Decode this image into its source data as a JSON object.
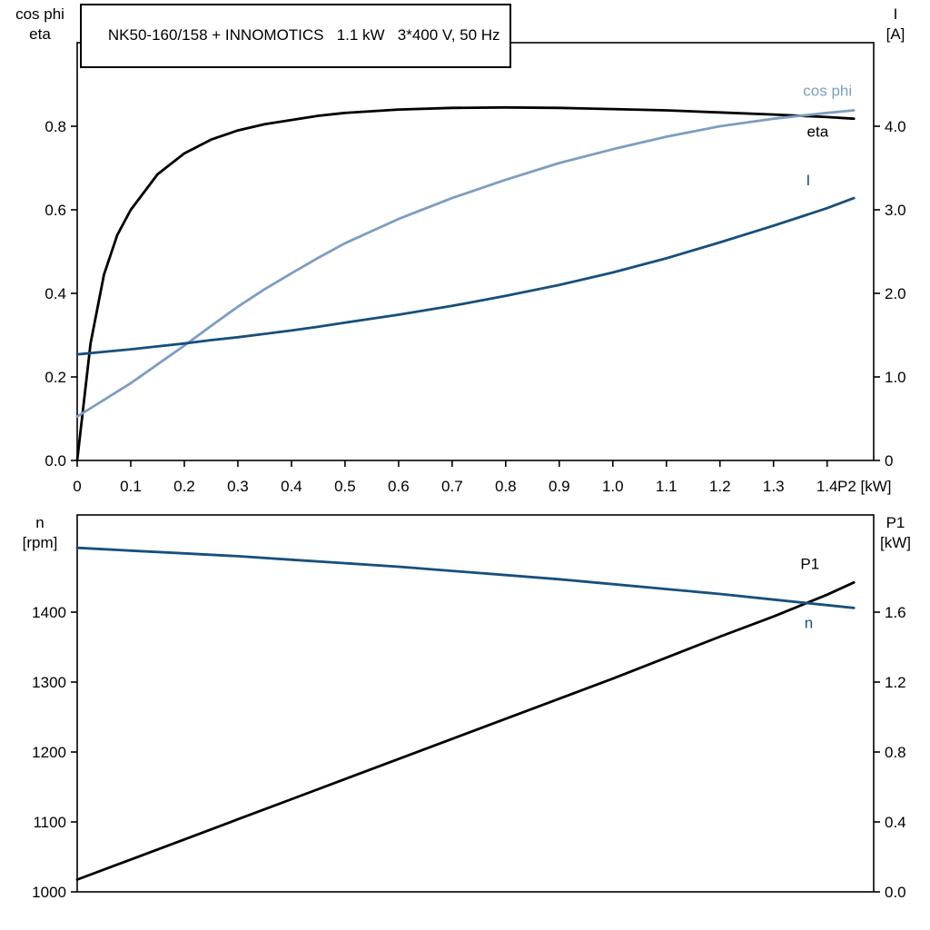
{
  "colors": {
    "eta": "#000000",
    "cos_phi": "#7e9dc1",
    "current": "#174f7c",
    "speed": "#174f7c",
    "p1": "#000000",
    "frame": "#000000"
  },
  "chart_data": [
    {
      "type": "line",
      "title": "NK50-160/158 + INNOMOTICS   1.1 kW   3*400 V, 50 Hz",
      "grid": false,
      "legend": "end-of-line-labels",
      "x_axis": {
        "label": "P2 [kW]",
        "range": [
          0,
          1.487
        ],
        "tick_values": [
          0,
          0.1,
          0.2,
          0.3,
          0.4,
          0.5,
          0.6,
          0.7,
          0.8,
          0.9,
          1.0,
          1.1,
          1.2,
          1.3,
          1.4
        ],
        "tick_labels": [
          "0",
          "0.1",
          "0.2",
          "0.3",
          "0.4",
          "0.5",
          "0.6",
          "0.7",
          "0.8",
          "0.9",
          "1.0",
          "1.1",
          "1.2",
          "1.3",
          "1.4"
        ]
      },
      "left_axis": {
        "title_lines": [
          "cos phi",
          "eta"
        ],
        "range": [
          0,
          1.0
        ],
        "tick_values": [
          0,
          0.2,
          0.4,
          0.6,
          0.8
        ],
        "tick_labels": [
          "0.0",
          "0.2",
          "0.4",
          "0.6",
          "0.8"
        ]
      },
      "right_axis": {
        "title_lines": [
          "I",
          "[A]"
        ],
        "range": [
          0,
          5.0
        ],
        "tick_values": [
          0,
          1,
          2,
          3,
          4
        ],
        "tick_labels": [
          "0",
          "1.0",
          "2.0",
          "3.0",
          "4.0"
        ]
      },
      "x": [
        0,
        0.025,
        0.05,
        0.075,
        0.1,
        0.15,
        0.2,
        0.25,
        0.3,
        0.35,
        0.4,
        0.45,
        0.5,
        0.6,
        0.7,
        0.8,
        0.9,
        1.0,
        1.1,
        1.2,
        1.3,
        1.4,
        1.45
      ],
      "series": [
        {
          "name": "eta",
          "label": "eta",
          "axis": "left",
          "color": "#000000",
          "label_offset": [
            -28,
            20
          ],
          "values": [
            0,
            0.28,
            0.445,
            0.54,
            0.6,
            0.685,
            0.735,
            0.768,
            0.79,
            0.805,
            0.815,
            0.825,
            0.832,
            0.84,
            0.844,
            0.845,
            0.844,
            0.841,
            0.838,
            0.833,
            0.828,
            0.822,
            0.818
          ]
        },
        {
          "name": "cos phi",
          "label": "cos phi",
          "axis": "left",
          "color": "#7e9dc1",
          "label_offset": [
            -2,
            -16
          ],
          "values": [
            0.105,
            0.125,
            0.145,
            0.165,
            0.185,
            0.23,
            0.275,
            0.322,
            0.368,
            0.41,
            0.448,
            0.485,
            0.52,
            0.578,
            0.628,
            0.672,
            0.712,
            0.745,
            0.775,
            0.8,
            0.818,
            0.832,
            0.838
          ]
        },
        {
          "name": "I",
          "label": "I",
          "axis": "right",
          "color": "#174f7c",
          "label_offset": [
            -48,
            -14
          ],
          "values": [
            1.27,
            1.285,
            1.3,
            1.315,
            1.33,
            1.365,
            1.4,
            1.44,
            1.475,
            1.515,
            1.555,
            1.6,
            1.65,
            1.745,
            1.85,
            1.97,
            2.1,
            2.25,
            2.42,
            2.61,
            2.81,
            3.02,
            3.14
          ]
        }
      ]
    },
    {
      "type": "line",
      "title": "",
      "grid": false,
      "legend": "end-of-line-labels",
      "x_axis": {
        "label": "",
        "range": [
          0,
          1.487
        ],
        "tick_values": [],
        "tick_labels": []
      },
      "left_axis": {
        "title_lines": [
          "n",
          "[rpm]"
        ],
        "range": [
          1000,
          1539
        ],
        "tick_values": [
          1000,
          1100,
          1200,
          1300,
          1400
        ],
        "tick_labels": [
          "1000",
          "1100",
          "1200",
          "1300",
          "1400"
        ]
      },
      "right_axis": {
        "title_lines": [
          "P1",
          "[kW]"
        ],
        "range": [
          0,
          2.156
        ],
        "tick_values": [
          0,
          0.4,
          0.8,
          1.2,
          1.6
        ],
        "tick_labels": [
          "0.0",
          "0.4",
          "0.8",
          "1.2",
          "1.6"
        ]
      },
      "x": [
        0,
        0.1,
        0.2,
        0.3,
        0.4,
        0.5,
        0.6,
        0.7,
        0.8,
        0.9,
        1.0,
        1.1,
        1.2,
        1.3,
        1.4,
        1.45
      ],
      "series": [
        {
          "name": "P1",
          "label": "P1",
          "axis": "right",
          "color": "#000000",
          "label_offset": [
            -38,
            -15
          ],
          "values": [
            0.07,
            0.185,
            0.3,
            0.415,
            0.53,
            0.645,
            0.76,
            0.875,
            0.99,
            1.105,
            1.22,
            1.34,
            1.46,
            1.575,
            1.7,
            1.77
          ]
        },
        {
          "name": "n",
          "label": "n",
          "axis": "left",
          "color": "#174f7c",
          "label_offset": [
            -45,
            22
          ],
          "values": [
            1492,
            1488,
            1484,
            1480,
            1475,
            1470,
            1465,
            1459,
            1453,
            1447,
            1440,
            1433,
            1426,
            1418,
            1410,
            1406
          ]
        }
      ]
    }
  ]
}
